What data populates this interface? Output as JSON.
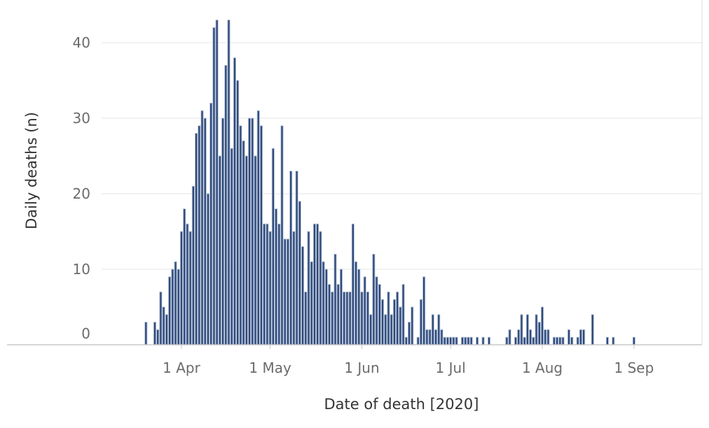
{
  "chart_data": {
    "type": "bar",
    "title": "",
    "xlabel": "Date of death [2020]",
    "ylabel": "Daily deaths (n)",
    "ylim": [
      0,
      45
    ],
    "y_ticks": [
      0,
      10,
      20,
      30,
      40
    ],
    "x_ticks": [
      {
        "label": "1 Apr",
        "date": "2020-04-01"
      },
      {
        "label": "1 May",
        "date": "2020-05-01"
      },
      {
        "label": "1 Jun",
        "date": "2020-06-01"
      },
      {
        "label": "1 Jul",
        "date": "2020-07-01"
      },
      {
        "label": "1 Aug",
        "date": "2020-08-01"
      },
      {
        "label": "1 Sep",
        "date": "2020-09-01"
      }
    ],
    "x_range": [
      "2020-03-05",
      "2020-09-24"
    ],
    "grid": "horizontal",
    "bar_color": "#2e4a7a",
    "bar_edge_color": "#b6c2d8",
    "series": [
      {
        "x": [
          "2020-03-20",
          "2020-03-23",
          "2020-03-24",
          "2020-03-25",
          "2020-03-26",
          "2020-03-27",
          "2020-03-28",
          "2020-03-29",
          "2020-03-30",
          "2020-03-31",
          "2020-04-01",
          "2020-04-02",
          "2020-04-03",
          "2020-04-04",
          "2020-04-05",
          "2020-04-06",
          "2020-04-07",
          "2020-04-08",
          "2020-04-09",
          "2020-04-10",
          "2020-04-11",
          "2020-04-12",
          "2020-04-13",
          "2020-04-14",
          "2020-04-15",
          "2020-04-16",
          "2020-04-17",
          "2020-04-18",
          "2020-04-19",
          "2020-04-20",
          "2020-04-21",
          "2020-04-22",
          "2020-04-23",
          "2020-04-24",
          "2020-04-25",
          "2020-04-26",
          "2020-04-27",
          "2020-04-28",
          "2020-04-29",
          "2020-04-30",
          "2020-05-01",
          "2020-05-02",
          "2020-05-03",
          "2020-05-04",
          "2020-05-05",
          "2020-05-06",
          "2020-05-07",
          "2020-05-08",
          "2020-05-09",
          "2020-05-10",
          "2020-05-11",
          "2020-05-12",
          "2020-05-13",
          "2020-05-14",
          "2020-05-15",
          "2020-05-16",
          "2020-05-17",
          "2020-05-18",
          "2020-05-19",
          "2020-05-20",
          "2020-05-21",
          "2020-05-22",
          "2020-05-23",
          "2020-05-24",
          "2020-05-25",
          "2020-05-26",
          "2020-05-27",
          "2020-05-28",
          "2020-05-29",
          "2020-05-30",
          "2020-05-31",
          "2020-06-01",
          "2020-06-02",
          "2020-06-03",
          "2020-06-04",
          "2020-06-05",
          "2020-06-06",
          "2020-06-07",
          "2020-06-08",
          "2020-06-09",
          "2020-06-10",
          "2020-06-11",
          "2020-06-12",
          "2020-06-13",
          "2020-06-14",
          "2020-06-15",
          "2020-06-16",
          "2020-06-17",
          "2020-06-18",
          "2020-06-20",
          "2020-06-21",
          "2020-06-22",
          "2020-06-23",
          "2020-06-24",
          "2020-06-25",
          "2020-06-26",
          "2020-06-27",
          "2020-06-28",
          "2020-06-29",
          "2020-06-30",
          "2020-07-01",
          "2020-07-02",
          "2020-07-03",
          "2020-07-05",
          "2020-07-06",
          "2020-07-07",
          "2020-07-08",
          "2020-07-10",
          "2020-07-12",
          "2020-07-14",
          "2020-07-20",
          "2020-07-21",
          "2020-07-23",
          "2020-07-24",
          "2020-07-25",
          "2020-07-26",
          "2020-07-27",
          "2020-07-28",
          "2020-07-29",
          "2020-07-30",
          "2020-07-31",
          "2020-08-01",
          "2020-08-02",
          "2020-08-03",
          "2020-08-05",
          "2020-08-06",
          "2020-08-07",
          "2020-08-08",
          "2020-08-10",
          "2020-08-11",
          "2020-08-13",
          "2020-08-14",
          "2020-08-15",
          "2020-08-18",
          "2020-08-23",
          "2020-08-25",
          "2020-09-01"
        ],
        "values": [
          3,
          3,
          2,
          7,
          5,
          4,
          9,
          10,
          11,
          10,
          15,
          18,
          16,
          15,
          21,
          28,
          29,
          31,
          30,
          20,
          32,
          42,
          43,
          25,
          30,
          37,
          43,
          26,
          38,
          35,
          29,
          27,
          25,
          30,
          30,
          25,
          31,
          29,
          16,
          16,
          15,
          26,
          18,
          16,
          29,
          14,
          14,
          23,
          15,
          23,
          19,
          13,
          7,
          15,
          11,
          16,
          16,
          15,
          11,
          10,
          8,
          7,
          12,
          8,
          10,
          7,
          7,
          7,
          16,
          11,
          10,
          7,
          9,
          7,
          4,
          12,
          9,
          8,
          6,
          4,
          7,
          4,
          6,
          7,
          5,
          8,
          1,
          3,
          5,
          1,
          6,
          9,
          2,
          2,
          4,
          2,
          4,
          2,
          1,
          1,
          1,
          1,
          1,
          1,
          1,
          1,
          1,
          1,
          1,
          1,
          1,
          2,
          1,
          2,
          4,
          1,
          4,
          2,
          1,
          4,
          3,
          5,
          2,
          2,
          1,
          1,
          1,
          1,
          2,
          1,
          1,
          2,
          2,
          4,
          1,
          1,
          1
        ]
      }
    ]
  }
}
